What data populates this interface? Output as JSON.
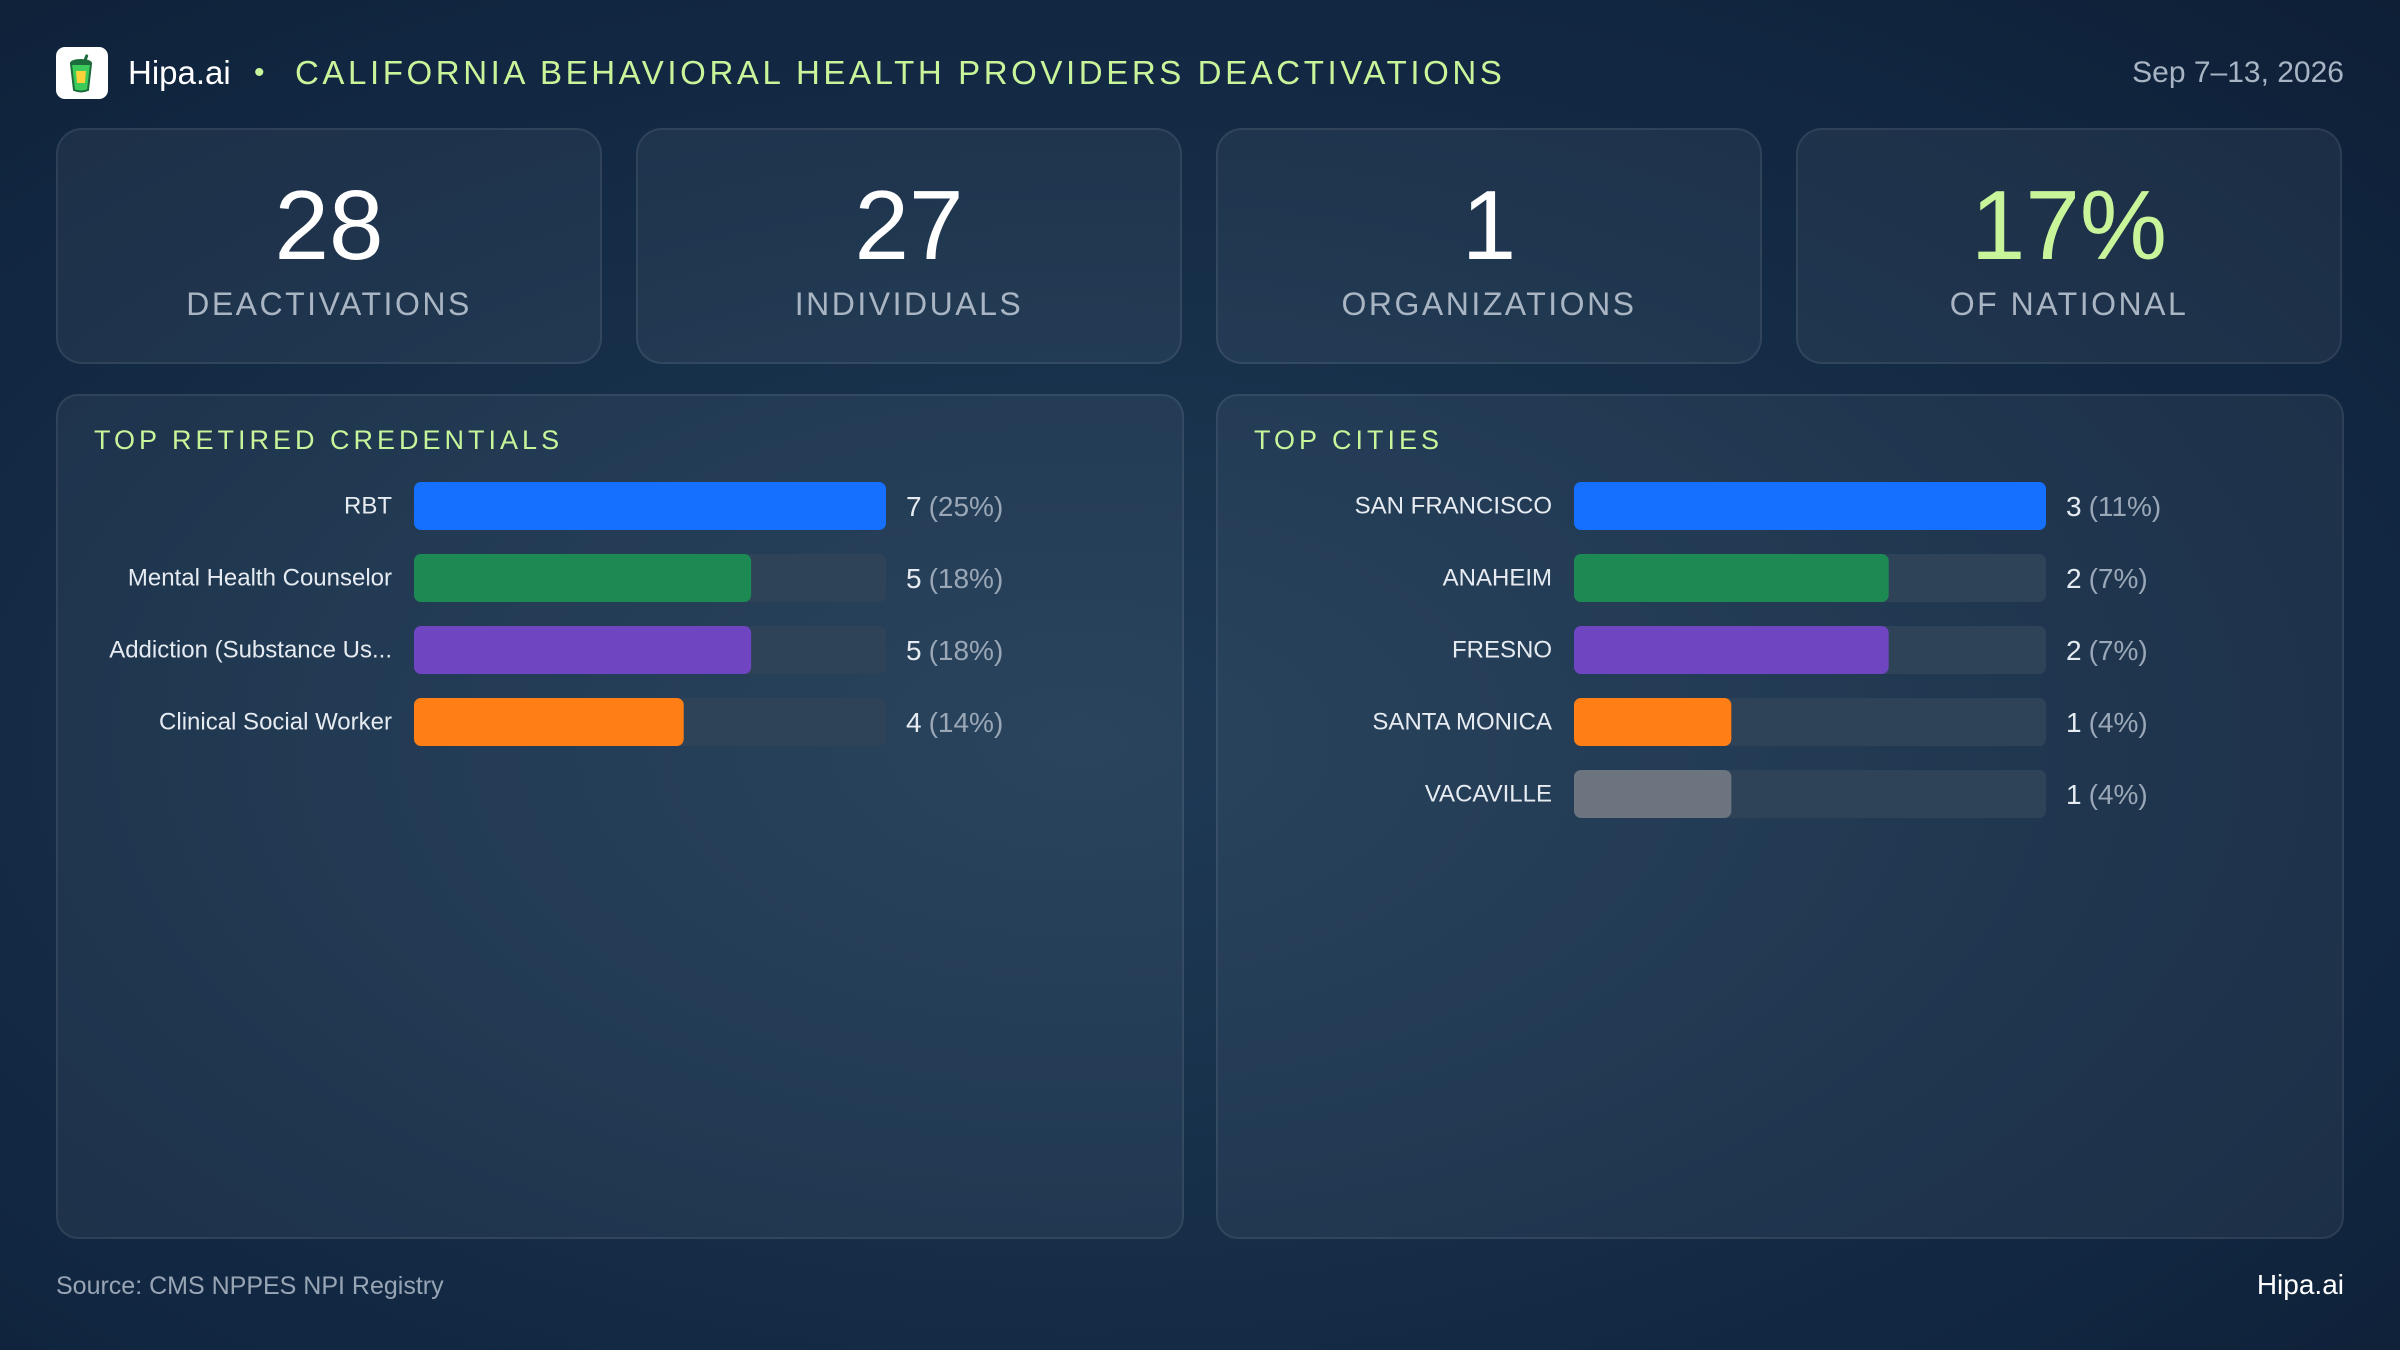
{
  "header": {
    "brand": "Hipa.ai",
    "separator": "•",
    "title": "CALIFORNIA BEHAVIORAL HEALTH PROVIDERS DEACTIVATIONS",
    "date": "Sep 7–13, 2026",
    "logo_icon": "tumbler-cup-icon"
  },
  "stats": [
    {
      "value": "28",
      "label": "DEACTIVATIONS"
    },
    {
      "value": "27",
      "label": "INDIVIDUALS"
    },
    {
      "value": "1",
      "label": "ORGANIZATIONS"
    },
    {
      "value": "17%",
      "label": "OF NATIONAL"
    }
  ],
  "colors": {
    "accent": "#c9f59a",
    "track": "#2f4358",
    "series": [
      "#1570ff",
      "#1d8a54",
      "#6f45c1",
      "#ff7f16",
      "#6c757f"
    ]
  },
  "chart_data": [
    {
      "type": "bar",
      "orientation": "horizontal",
      "title": "TOP RETIRED CREDENTIALS",
      "categories": [
        "RBT",
        "Mental Health Counselor",
        "Addiction (Substance Us...",
        "Clinical Social Worker"
      ],
      "values": [
        7,
        5,
        5,
        4
      ],
      "value_labels": [
        "7",
        "5",
        "5",
        "4"
      ],
      "percent_labels": [
        "(25%)",
        "(18%)",
        "(18%)",
        "(14%)"
      ],
      "xlim": [
        0,
        7
      ]
    },
    {
      "type": "bar",
      "orientation": "horizontal",
      "title": "TOP CITIES",
      "categories": [
        "SAN FRANCISCO",
        "ANAHEIM",
        "FRESNO",
        "SANTA MONICA",
        "VACAVILLE"
      ],
      "values": [
        3,
        2,
        2,
        1,
        1
      ],
      "value_labels": [
        "3",
        "2",
        "2",
        "1",
        "1"
      ],
      "percent_labels": [
        "(11%)",
        "(7%)",
        "(7%)",
        "(4%)",
        "(4%)"
      ],
      "xlim": [
        0,
        3
      ]
    }
  ],
  "footer": {
    "source": "Source: CMS NPPES NPI Registry",
    "brand": "Hipa.ai"
  }
}
